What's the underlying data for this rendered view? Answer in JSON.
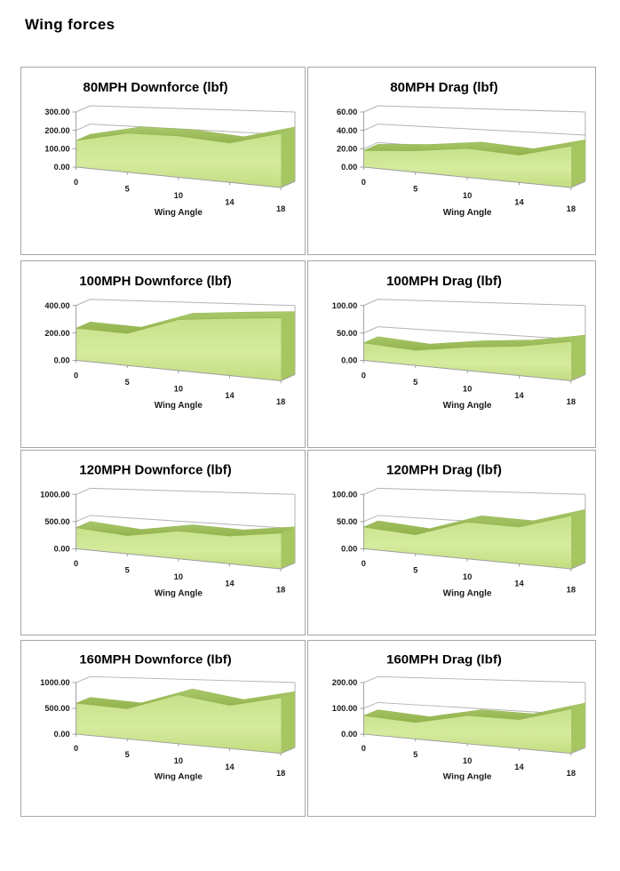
{
  "page": {
    "title": "Wing forces"
  },
  "colors": {
    "panel_border": "#a6a6a6",
    "grid_line": "#b3b3b3",
    "axis_line": "#9e9e9e",
    "text": "#1a1a1a",
    "area_front_top": "#c6e18a",
    "area_front_mid": "#d5eb9e",
    "area_front_bottom": "#c3dd80",
    "area_band_top": "#a9c86b",
    "area_band_bottom": "#93b34d",
    "area_side": "#a6c662",
    "area_edge": "#95b551"
  },
  "chart_data": [
    {
      "type": "area",
      "style": "3d-area",
      "legend": false,
      "grid": true,
      "title": "80MPH Downforce (lbf)",
      "xlabel": "Wing Angle",
      "ylabel": "",
      "categories": [
        "0",
        "5",
        "10",
        "14",
        "18"
      ],
      "values": [
        145,
        200,
        200,
        180,
        235
      ],
      "ylim": [
        0,
        300
      ],
      "ytick_labels": [
        "0.00",
        "100.00",
        "200.00",
        "300.00"
      ]
    },
    {
      "type": "area",
      "style": "3d-area",
      "legend": false,
      "grid": true,
      "title": "80MPH Drag (lbf)",
      "xlabel": "Wing Angle",
      "ylabel": "",
      "categories": [
        "0",
        "5",
        "10",
        "14",
        "18"
      ],
      "values": [
        18,
        22,
        28,
        25,
        36
      ],
      "ylim": [
        0,
        60
      ],
      "ytick_labels": [
        "0.00",
        "20.00",
        "40.00",
        "60.00"
      ]
    },
    {
      "type": "area",
      "style": "3d-area",
      "legend": false,
      "grid": true,
      "title": "100MPH Downforce (lbf)",
      "xlabel": "Wing Angle",
      "ylabel": "",
      "categories": [
        "0",
        "5",
        "10",
        "14",
        "18"
      ],
      "values": [
        235,
        220,
        330,
        350,
        365
      ],
      "ylim": [
        0,
        400
      ],
      "ytick_labels": [
        "0.00",
        "200.00",
        "400.00"
      ]
    },
    {
      "type": "area",
      "style": "3d-area",
      "legend": false,
      "grid": true,
      "title": "100MPH Drag (lbf)",
      "xlabel": "Wing Angle",
      "ylabel": "",
      "categories": [
        "0",
        "5",
        "10",
        "14",
        "18"
      ],
      "values": [
        32,
        26,
        38,
        45,
        57
      ],
      "ylim": [
        0,
        100
      ],
      "ytick_labels": [
        "0.00",
        "50.00",
        "100.00"
      ]
    },
    {
      "type": "area",
      "style": "3d-area",
      "legend": false,
      "grid": true,
      "title": "120MPH Downforce (lbf)",
      "xlabel": "Wing Angle",
      "ylabel": "",
      "categories": [
        "0",
        "5",
        "10",
        "14",
        "18"
      ],
      "values": [
        390,
        315,
        455,
        430,
        525
      ],
      "ylim": [
        0,
        1000
      ],
      "ytick_labels": [
        "0.00",
        "500.00",
        "1000.00"
      ]
    },
    {
      "type": "area",
      "style": "3d-area",
      "legend": false,
      "grid": true,
      "title": "120MPH Drag (lbf)",
      "xlabel": "Wing Angle",
      "ylabel": "",
      "categories": [
        "0",
        "5",
        "10",
        "14",
        "18"
      ],
      "values": [
        40,
        33,
        60,
        57,
        78
      ],
      "ylim": [
        0,
        100
      ],
      "ytick_labels": [
        "0.00",
        "50.00",
        "100.00"
      ]
    },
    {
      "type": "area",
      "style": "3d-area",
      "legend": false,
      "grid": true,
      "title": "160MPH Downforce (lbf)",
      "xlabel": "Wing Angle",
      "ylabel": "",
      "categories": [
        "0",
        "5",
        "10",
        "14",
        "18"
      ],
      "values": [
        600,
        550,
        840,
        700,
        860
      ],
      "ylim": [
        0,
        1000
      ],
      "ytick_labels": [
        "0.00",
        "500.00",
        "1000.00"
      ]
    },
    {
      "type": "area",
      "style": "3d-area",
      "legend": false,
      "grid": true,
      "title": "160MPH Drag (lbf)",
      "xlabel": "Wing Angle",
      "ylabel": "",
      "categories": [
        "0",
        "5",
        "10",
        "14",
        "18"
      ],
      "values": [
        72,
        60,
        97,
        94,
        137
      ],
      "ylim": [
        0,
        200
      ],
      "ytick_labels": [
        "0.00",
        "100.00",
        "200.00"
      ]
    }
  ]
}
